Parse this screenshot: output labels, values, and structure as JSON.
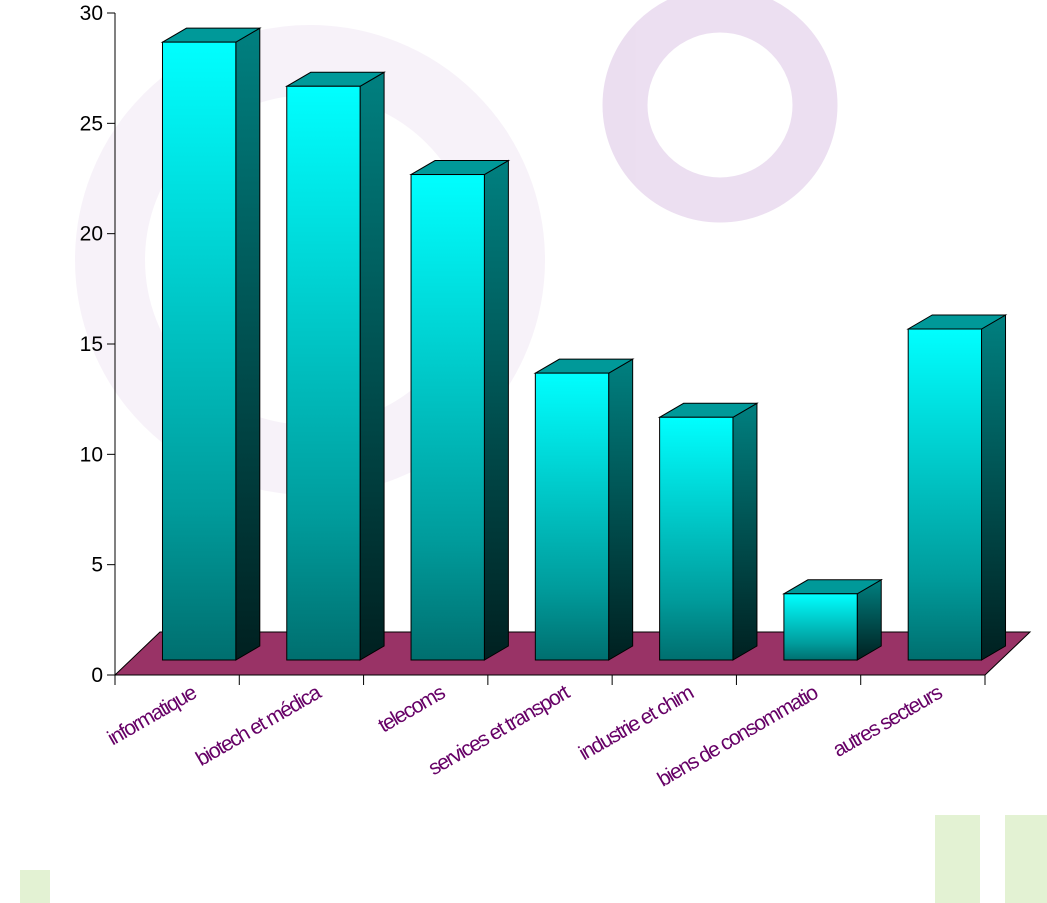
{
  "chart_data": {
    "type": "bar3d",
    "categories": [
      "informatique",
      "biotech et médica",
      "telecoms",
      "services et transport",
      "industrie et chim",
      "biens de consommatio",
      "autres secteurs"
    ],
    "values": [
      28,
      26,
      22,
      13,
      11,
      3,
      15
    ],
    "color": "#00ffff",
    "floor_color": "#993366",
    "label_color": "#660066",
    "ylim": [
      0,
      30
    ],
    "yticks": [
      0,
      5,
      10,
      15,
      20,
      25,
      30
    ]
  }
}
